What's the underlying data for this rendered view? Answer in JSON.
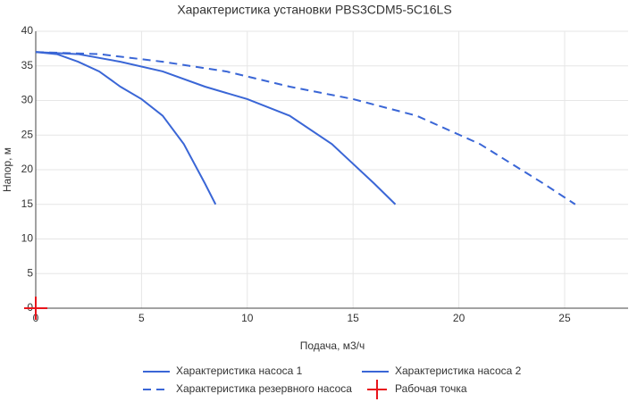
{
  "chart_data": {
    "type": "line",
    "title": "Характеристика установки PBS3CDM5-5C16LS",
    "x_label": "Подача, м3/ч",
    "y_label": "Напор, м",
    "xlim": [
      0,
      28
    ],
    "xticks": [
      0,
      5,
      10,
      15,
      20,
      25
    ],
    "ylim": [
      0,
      40
    ],
    "yticks": [
      0,
      5,
      10,
      15,
      20,
      25,
      30,
      35,
      40
    ],
    "grid": true,
    "legend": "bottom",
    "series": [
      {
        "name": "Характеристика насоса 1",
        "color": "#3a66d6",
        "dash": "solid",
        "x": [
          0,
          1,
          2,
          3,
          4,
          5,
          6,
          7,
          8,
          8.5
        ],
        "values": [
          37,
          36.7,
          35.6,
          34.2,
          32,
          30.2,
          27.8,
          23.7,
          18,
          15
        ]
      },
      {
        "name": "Характеристика насоса 2",
        "color": "#3a66d6",
        "dash": "solid",
        "x": [
          0,
          2,
          4,
          6,
          8,
          10,
          12,
          14,
          16,
          17
        ],
        "values": [
          37,
          36.7,
          35.6,
          34.2,
          32,
          30.2,
          27.8,
          23.7,
          18,
          15
        ]
      },
      {
        "name": "Характеристика резервного насоса",
        "color": "#3a66d6",
        "dash": "dash",
        "x": [
          0,
          3,
          6,
          9,
          12,
          15,
          18,
          21,
          24,
          25.5
        ],
        "values": [
          37,
          36.7,
          35.6,
          34.2,
          32,
          30.2,
          27.8,
          23.7,
          18,
          15
        ]
      },
      {
        "name": "Рабочая точка",
        "color": "#e8141b",
        "marker": "cross",
        "x": [
          0
        ],
        "values": [
          0
        ]
      }
    ]
  }
}
